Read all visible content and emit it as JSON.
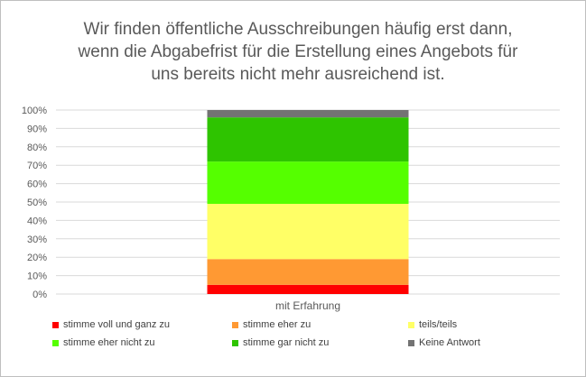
{
  "chart_data": {
    "type": "bar",
    "stacked": true,
    "title_lines": [
      "Wir finden öffentliche Ausschreibungen häufig erst dann,",
      "wenn die Abgabefrist für die Erstellung eines Angebots für",
      "uns bereits nicht mehr ausreichend ist."
    ],
    "categories": [
      "mit Erfahrung"
    ],
    "y_ticks": [
      "0%",
      "10%",
      "20%",
      "30%",
      "40%",
      "50%",
      "60%",
      "70%",
      "80%",
      "90%",
      "100%"
    ],
    "ylim": [
      0,
      100
    ],
    "grid": true,
    "legend_position": "bottom",
    "series": [
      {
        "name": "stimme voll und ganz zu",
        "color": "#ff0000",
        "values": [
          5
        ]
      },
      {
        "name": "stimme eher zu",
        "color": "#ff9933",
        "values": [
          14
        ]
      },
      {
        "name": "teils/teils",
        "color": "#ffff66",
        "values": [
          30
        ]
      },
      {
        "name": "stimme eher nicht zu",
        "color": "#55ff00",
        "values": [
          23
        ]
      },
      {
        "name": "stimme gar nicht zu",
        "color": "#2ec400",
        "values": [
          24
        ]
      },
      {
        "name": "Keine Antwort",
        "color": "#737373",
        "values": [
          4
        ]
      }
    ]
  }
}
